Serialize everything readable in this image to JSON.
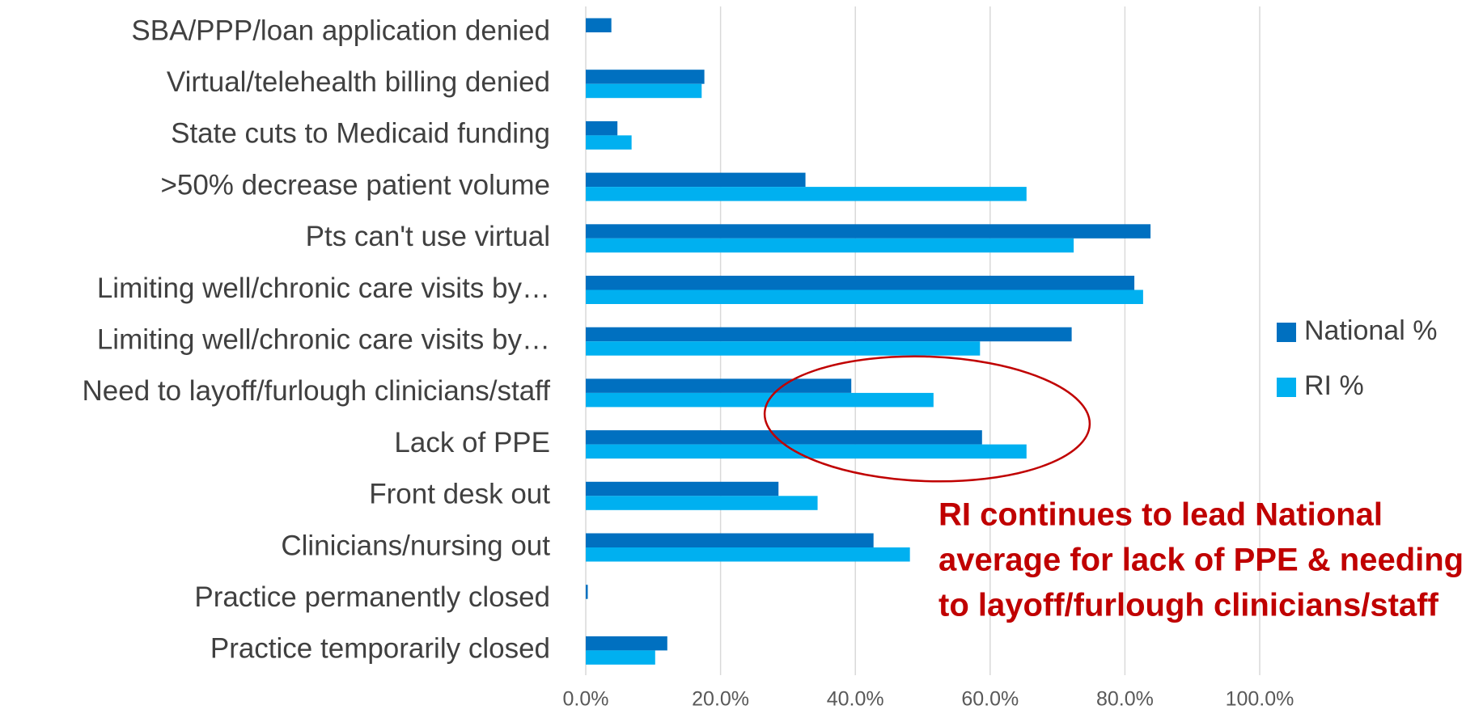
{
  "chart_data": {
    "type": "hbar",
    "categories": [
      "SBA/PPP/loan application denied",
      "Virtual/telehealth billing denied",
      "State cuts to Medicaid funding",
      ">50% decrease patient volume",
      "Pts can't use virtual",
      "Limiting well/chronic care visits by…",
      "Limiting well/chronic care visits by…",
      "Need to layoff/furlough clinicians/staff",
      "Lack of PPE",
      "Front desk out",
      "Clinicians/nursing out",
      "Practice permanently closed",
      "Practice temporarily closed"
    ],
    "series": [
      {
        "name": "National %",
        "color": "#0070c0",
        "values": [
          3.8,
          17.6,
          4.7,
          32.6,
          83.8,
          81.4,
          72.1,
          39.4,
          58.8,
          28.6,
          42.7,
          0.3,
          12.1
        ]
      },
      {
        "name": "RI %",
        "color": "#00b0f0",
        "values": [
          null,
          17.2,
          6.8,
          65.4,
          72.4,
          82.7,
          58.5,
          51.6,
          65.4,
          34.4,
          48.1,
          null,
          10.3
        ]
      }
    ],
    "xlim": [
      0,
      100
    ],
    "xticks": [
      {
        "value": 0,
        "label": "0.0%"
      },
      {
        "value": 20,
        "label": "20.0%"
      },
      {
        "value": 40,
        "label": "40.0%"
      },
      {
        "value": 60,
        "label": "60.0%"
      },
      {
        "value": 80,
        "label": "80.0%"
      },
      {
        "value": 100,
        "label": "100.0%"
      }
    ],
    "grid": true,
    "legend": "right",
    "annotation": [
      "RI continues to lead National",
      "average for lack of PPE & needing",
      "to layoff/furlough clinicians/staff"
    ]
  }
}
